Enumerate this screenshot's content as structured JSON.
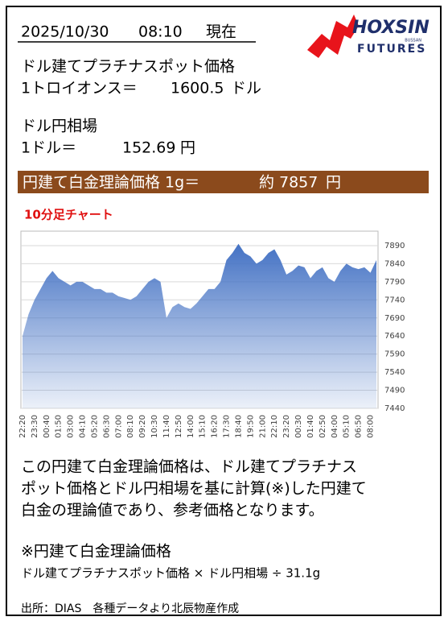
{
  "header": {
    "date": "2025/10/30",
    "time": "08:10",
    "status": "現在"
  },
  "logo": {
    "name": "HOXSIN",
    "tag": "BUSSAN",
    "sub": "FUTURES"
  },
  "platinum": {
    "label": "ドル建てプラチナスポット価格",
    "unit": "1トロイオンス＝",
    "value": "1600.5",
    "currency": "ドル"
  },
  "fx": {
    "label": "ドル円相場",
    "unit": "1ドル＝",
    "value": "152.69",
    "currency": "円"
  },
  "result": {
    "label": "円建て白金理論価格 1g＝",
    "approx": "約",
    "value": "7857",
    "currency": "円"
  },
  "chart_data": {
    "type": "area",
    "title": "10分足チャート",
    "categories": [
      "22:20",
      null,
      "23:30",
      null,
      "00:40",
      null,
      "01:50",
      null,
      "03:00",
      null,
      "04:10",
      null,
      "05:20",
      null,
      "06:30",
      null,
      "07:00",
      null,
      "08:10",
      null,
      "09:20",
      null,
      "10:30",
      null,
      "11:40",
      null,
      "12:50",
      null,
      "14:00",
      null,
      "15:10",
      null,
      "16:20",
      null,
      "17:30",
      null,
      "18:40",
      null,
      "19:50",
      null,
      "21:00",
      null,
      "22:10",
      null,
      "23:20",
      null,
      "00:30",
      null,
      "01:40",
      null,
      "02:50",
      null,
      "04:00",
      null,
      "05:10",
      null,
      "06:50",
      null,
      "08:00",
      null
    ],
    "series": [
      {
        "color": "#4472c4",
        "values": [
          7640,
          7700,
          7740,
          7770,
          7800,
          7820,
          7800,
          7790,
          7780,
          7790,
          7790,
          7780,
          7770,
          7770,
          7760,
          7760,
          7750,
          7745,
          7740,
          7750,
          7770,
          7790,
          7800,
          7790,
          7690,
          7720,
          7730,
          7720,
          7715,
          7730,
          7750,
          7770,
          7770,
          7790,
          7850,
          7870,
          7895,
          7870,
          7860,
          7840,
          7850,
          7870,
          7880,
          7850,
          7810,
          7820,
          7835,
          7830,
          7800,
          7820,
          7830,
          7800,
          7790,
          7820,
          7840,
          7830,
          7825,
          7830,
          7815,
          7850
        ]
      }
    ],
    "ylim": [
      7440,
      7930
    ],
    "yticks": [
      7440,
      7490,
      7540,
      7590,
      7640,
      7690,
      7740,
      7790,
      7840,
      7890
    ],
    "grid": true
  },
  "note": {
    "lines": [
      "この円建て白金理論価格は、ドル建てプラチナス",
      "ポット価格とドル円相場を基に計算(※)した円建て",
      "白金の理論値であり、参考価格となります。"
    ],
    "formula_title": "※円建て白金理論価格",
    "formula": "ドル建てプラチナスポット価格 × ドル円相場 ÷ 31.1g"
  },
  "source": "出所：DIAS　各種データより北辰物産作成"
}
